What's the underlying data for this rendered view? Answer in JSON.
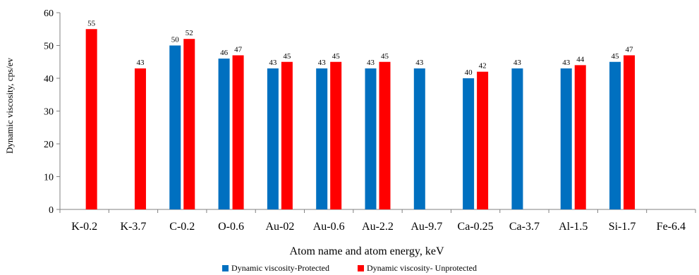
{
  "chart_data": {
    "type": "bar",
    "xlabel": "Atom name and atom energy, keV",
    "ylabel": "Dynamic viscosity, cps/ev",
    "ylim": [
      0,
      60
    ],
    "yticks": [
      0,
      10,
      20,
      30,
      40,
      50,
      60
    ],
    "categories": [
      "K-0.2",
      "K-3.7",
      "C-0.2",
      "O-0.6",
      "Au-02",
      "Au-0.6",
      "Au-2.2",
      "Au-9.7",
      "Ca-0.25",
      "Ca-3.7",
      "Al-1.5",
      "Si-1.7",
      "Fe-6.4"
    ],
    "series": [
      {
        "name": "Dynamic viscosity-Protected",
        "color": "#0070c0",
        "values": [
          null,
          null,
          50,
          46,
          43,
          43,
          43,
          43,
          40,
          43,
          43,
          45,
          null
        ]
      },
      {
        "name": "Dynamic viscosity- Unprotected",
        "color": "#ff0000",
        "values": [
          55,
          43,
          52,
          47,
          45,
          45,
          45,
          null,
          42,
          null,
          44,
          47,
          null
        ]
      }
    ],
    "grid": false,
    "legend_position": "bottom"
  }
}
